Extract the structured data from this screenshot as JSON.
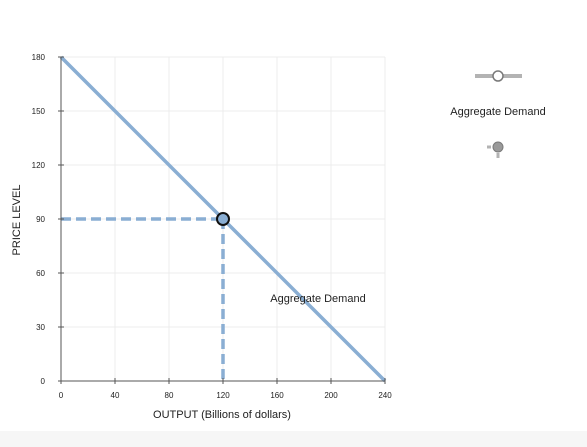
{
  "chart_data": {
    "type": "line",
    "xlabel": "OUTPUT (Billions of dollars)",
    "ylabel": "PRICE LEVEL",
    "xlim": [
      0,
      240
    ],
    "ylim": [
      0,
      180
    ],
    "x_ticks": [
      0,
      40,
      80,
      120,
      160,
      200,
      240
    ],
    "y_ticks": [
      0,
      30,
      60,
      90,
      120,
      150,
      180
    ],
    "grid": true,
    "series": [
      {
        "name": "Aggregate Demand",
        "color": "#8aaed3",
        "points": [
          [
            0,
            180
          ],
          [
            240,
            0
          ]
        ]
      }
    ],
    "annotations": [
      {
        "text": "Aggregate Demand"
      }
    ],
    "highlight_point": {
      "x": 120,
      "y": 90
    },
    "legend": {
      "placement": "right",
      "items": [
        {
          "label": "Aggregate Demand",
          "icon": "line-with-hollow-circle-icon"
        },
        {
          "label": "",
          "icon": "gray-point-icon"
        }
      ]
    }
  }
}
